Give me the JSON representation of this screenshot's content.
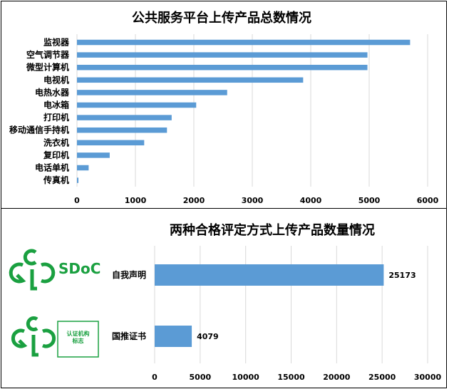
{
  "chart_data": [
    {
      "type": "bar",
      "orientation": "horizontal",
      "title": "公共服务平台上传产品总数情况",
      "categories": [
        "监视器",
        "空气调节器",
        "微型计算机",
        "电视机",
        "电热水器",
        "电冰箱",
        "打印机",
        "移动通信手持机",
        "洗衣机",
        "复印机",
        "电话单机",
        "传真机"
      ],
      "values": [
        5700,
        4970,
        4970,
        3870,
        2570,
        2040,
        1620,
        1540,
        1150,
        560,
        200,
        25
      ],
      "xlim": [
        0,
        6000
      ],
      "xticks": [
        "0",
        "1000",
        "2000",
        "3000",
        "4000",
        "5000",
        "6000"
      ],
      "grid": true,
      "color": "#5b9bd5"
    },
    {
      "type": "bar",
      "orientation": "horizontal",
      "title": "两种合格评定方式上传产品数量情况",
      "categories": [
        "自我声明",
        "国推证书"
      ],
      "values": [
        25173,
        4079
      ],
      "data_labels": [
        "25173",
        "4079"
      ],
      "xlim": [
        0,
        30000
      ],
      "xticks": [
        "0",
        "5000",
        "10000",
        "15000",
        "20000",
        "25000",
        "30000"
      ],
      "grid": true,
      "color": "#5b9bd5"
    }
  ],
  "logos": {
    "sdoc_text": "SDoC",
    "cert_box_text_1": "认证机构",
    "cert_box_text_2": "标志",
    "logo_color": "#1aa040"
  }
}
